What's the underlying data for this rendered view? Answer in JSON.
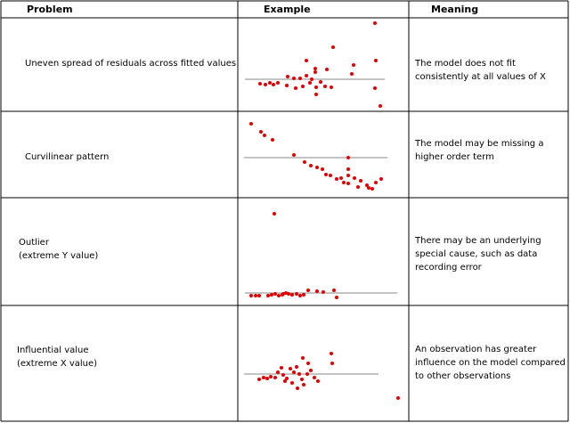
{
  "header": {
    "columns": [
      "Problem",
      "Example",
      "Meaning"
    ]
  },
  "rows": [
    {
      "problem": [
        "Uneven spread of residuals across fitted values"
      ],
      "meaning": [
        "The model does not fit",
        "consistently at all values of X"
      ]
    },
    {
      "problem": [
        "Curvilinear pattern"
      ],
      "meaning": [
        "The model may be missing a",
        "higher order term"
      ]
    },
    {
      "problem": [
        "Outlier",
        "(extreme Y value)"
      ],
      "meaning": [
        "There may be an underlying",
        "special cause, such as data",
        "recording error"
      ]
    },
    {
      "problem": [
        "Influential value",
        "(extreme X value)"
      ],
      "meaning": [
        "An observation has greater",
        "influence on the model compared",
        "to other observations"
      ]
    }
  ]
}
